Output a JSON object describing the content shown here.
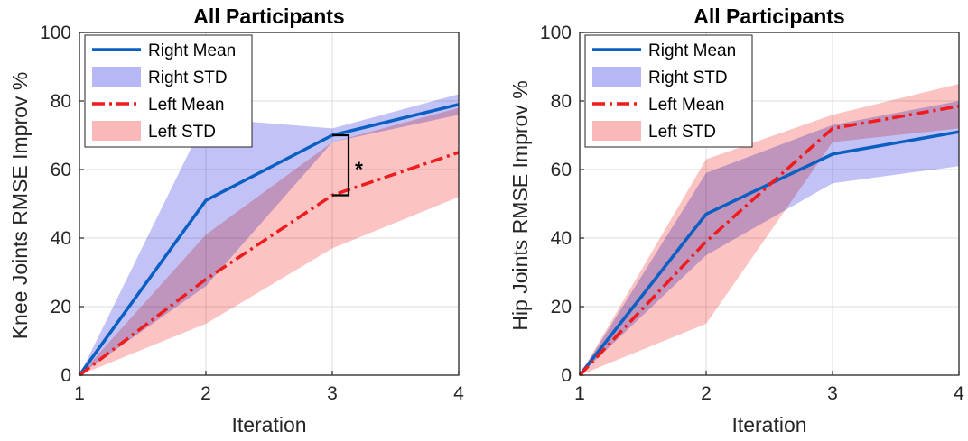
{
  "chart_data": [
    {
      "type": "line",
      "title": "All Participants",
      "xlabel": "Iteration",
      "ylabel": "Knee Joints RMSE Improv %",
      "x": [
        1,
        2,
        3,
        4
      ],
      "xlim": [
        1,
        4
      ],
      "ylim": [
        0,
        100
      ],
      "xticks": [
        1,
        2,
        3,
        4
      ],
      "yticks": [
        0,
        20,
        40,
        60,
        80,
        100
      ],
      "grid": true,
      "legend": "top-left",
      "series": [
        {
          "name": "Right Mean",
          "style": "solid",
          "color": "#0a5fc2",
          "values": [
            0,
            51,
            70,
            79
          ]
        },
        {
          "name": "Right STD",
          "kind": "band",
          "color": "#b3b3f5",
          "lower": [
            0,
            26,
            68,
            76
          ],
          "upper": [
            0,
            75,
            72,
            82
          ]
        },
        {
          "name": "Left Mean",
          "style": "dashdot",
          "color": "#ee1c1c",
          "values": [
            0,
            28,
            52.5,
            65
          ]
        },
        {
          "name": "Left STD",
          "kind": "band",
          "color": "#fbb4b4",
          "lower": [
            0,
            15,
            37,
            52
          ],
          "upper": [
            0,
            41,
            68,
            78
          ]
        }
      ],
      "annotation": {
        "text": "*",
        "x": 3,
        "y_low": 52.5,
        "y_high": 70
      }
    },
    {
      "type": "line",
      "title": "All Participants",
      "xlabel": "Iteration",
      "ylabel": "Hip Joints RMSE Improv %",
      "x": [
        1,
        2,
        3,
        4
      ],
      "xlim": [
        1,
        4
      ],
      "ylim": [
        0,
        100
      ],
      "xticks": [
        1,
        2,
        3,
        4
      ],
      "yticks": [
        0,
        20,
        40,
        60,
        80,
        100
      ],
      "grid": true,
      "legend": "top-left",
      "series": [
        {
          "name": "Right Mean",
          "style": "solid",
          "color": "#0a5fc2",
          "values": [
            0,
            47,
            64.5,
            71
          ]
        },
        {
          "name": "Right STD",
          "kind": "band",
          "color": "#b3b3f5",
          "lower": [
            0,
            35,
            56,
            61
          ],
          "upper": [
            0,
            59,
            73,
            80
          ]
        },
        {
          "name": "Left Mean",
          "style": "dashdot",
          "color": "#ee1c1c",
          "values": [
            0,
            39,
            72,
            78.5
          ]
        },
        {
          "name": "Left STD",
          "kind": "band",
          "color": "#fbb4b4",
          "lower": [
            0,
            15,
            68,
            72
          ],
          "upper": [
            0,
            63,
            76,
            85
          ]
        }
      ]
    }
  ]
}
